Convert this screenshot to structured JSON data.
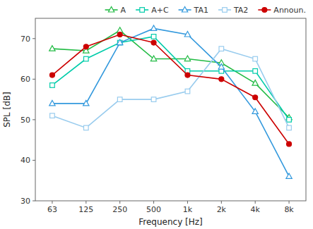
{
  "chart_data": {
    "type": "line",
    "xlabel": "Frequency [Hz]",
    "ylabel": "SPL [dB]",
    "categories": [
      "63",
      "125",
      "250",
      "500",
      "1k",
      "2k",
      "4k",
      "8k"
    ],
    "series": [
      {
        "name": "A",
        "color": "#22bb44",
        "marker": "triangle-open",
        "values": [
          67.5,
          67,
          72,
          65,
          65,
          64,
          59,
          50.5
        ]
      },
      {
        "name": "A+C",
        "color": "#00ccaa",
        "marker": "square-open",
        "values": [
          58.5,
          65,
          69,
          70.5,
          62,
          62,
          62,
          50
        ]
      },
      {
        "name": "TA1",
        "color": "#3399dd",
        "marker": "triangle-open",
        "values": [
          54,
          54,
          69,
          72.5,
          71,
          63,
          52,
          36
        ]
      },
      {
        "name": "TA2",
        "color": "#99ccee",
        "marker": "square-open",
        "values": [
          51,
          48,
          55,
          55,
          57,
          67.5,
          65,
          48
        ]
      },
      {
        "name": "Announ.",
        "color": "#cc0000",
        "marker": "circle",
        "values": [
          61,
          68,
          71,
          69,
          61,
          60,
          55.5,
          44
        ]
      }
    ],
    "ylim": [
      30,
      75
    ],
    "yticks": [
      30,
      40,
      50,
      60,
      70
    ],
    "grid": false,
    "legend": "upper right"
  }
}
